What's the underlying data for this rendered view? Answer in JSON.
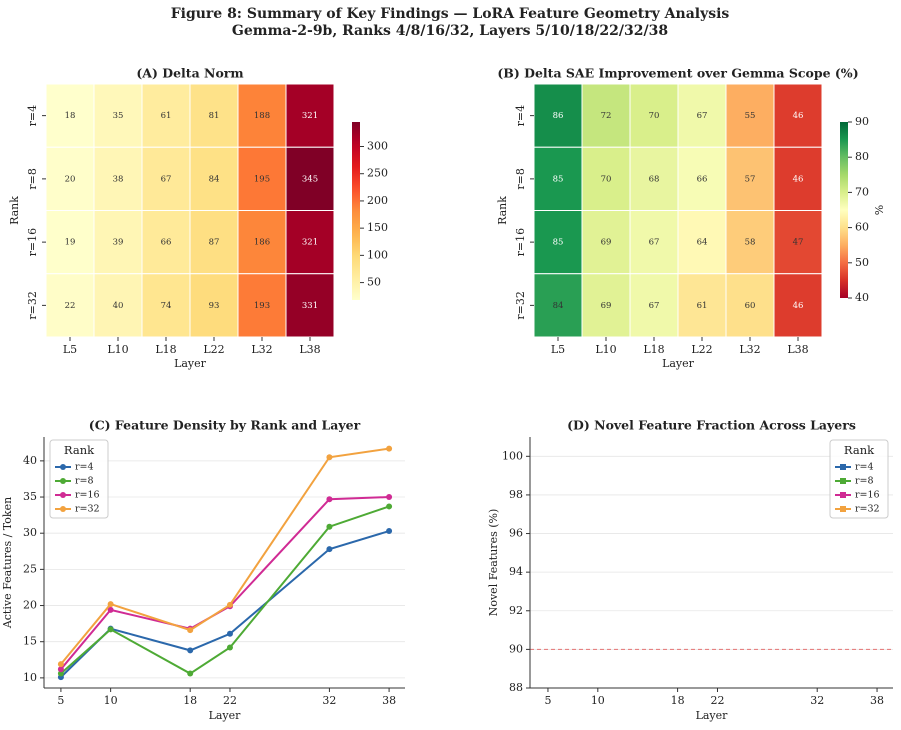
{
  "figure": {
    "title": "Figure 8: Summary of Key Findings — LoRA Feature Geometry Analysis",
    "subtitle": "Gemma-2-9b, Ranks 4/8/16/32, Layers 5/10/18/22/32/38"
  },
  "chart_data": [
    {
      "type": "heatmap",
      "title": "(A) Delta Norm",
      "xlabel": "Layer",
      "ylabel": "Rank",
      "x_categories": [
        "L5",
        "L10",
        "L18",
        "L22",
        "L32",
        "L38"
      ],
      "y_categories": [
        "r=4",
        "r=8",
        "r=16",
        "r=32"
      ],
      "values": [
        [
          18,
          35,
          61,
          81,
          188,
          321
        ],
        [
          20,
          38,
          67,
          84,
          195,
          345
        ],
        [
          19,
          39,
          66,
          87,
          186,
          321
        ],
        [
          22,
          40,
          74,
          93,
          193,
          331
        ]
      ],
      "colormap": "YlOrRd",
      "clim": [
        18,
        345
      ],
      "cticks": [
        50,
        100,
        150,
        200,
        250,
        300
      ]
    },
    {
      "type": "heatmap",
      "title": "(B) Delta SAE Improvement over Gemma Scope (%)",
      "xlabel": "Layer",
      "ylabel": "Rank",
      "x_categories": [
        "L5",
        "L10",
        "L18",
        "L22",
        "L32",
        "L38"
      ],
      "y_categories": [
        "r=4",
        "r=8",
        "r=16",
        "r=32"
      ],
      "values": [
        [
          86,
          72,
          70,
          67,
          55,
          46
        ],
        [
          85,
          70,
          68,
          66,
          57,
          46
        ],
        [
          85,
          69,
          67,
          64,
          58,
          47
        ],
        [
          84,
          69,
          67,
          61,
          60,
          46
        ]
      ],
      "colormap": "RdYlGn",
      "clim": [
        40,
        90
      ],
      "cticks": [
        40,
        50,
        60,
        70,
        80,
        90
      ],
      "colorbar_label": "%"
    },
    {
      "type": "line",
      "title": "(C) Feature Density by Rank and Layer",
      "xlabel": "Layer",
      "ylabel": "Active Features / Token",
      "x": [
        5,
        10,
        18,
        22,
        32,
        38
      ],
      "xlim": [
        3.3,
        39.6
      ],
      "xticks": [
        5,
        10,
        18,
        22,
        32,
        38
      ],
      "ylim": [
        8.6,
        43.3
      ],
      "yticks": [
        10,
        15,
        20,
        25,
        30,
        35,
        40
      ],
      "grid": true,
      "marker": "circle",
      "legend_title": "Rank",
      "legend": "upper left",
      "series": [
        {
          "name": "r=4",
          "color": "#2b68ab",
          "values": [
            10.1,
            16.8,
            13.8,
            16.1,
            27.8,
            30.3
          ]
        },
        {
          "name": "r=8",
          "color": "#4eaa35",
          "values": [
            10.6,
            16.7,
            10.6,
            14.2,
            30.9,
            33.7
          ]
        },
        {
          "name": "r=16",
          "color": "#d02b94",
          "values": [
            11.2,
            19.4,
            16.8,
            19.9,
            34.7,
            35.0
          ]
        },
        {
          "name": "r=32",
          "color": "#f2a23f",
          "values": [
            11.9,
            20.2,
            16.6,
            20.1,
            40.5,
            41.7
          ]
        }
      ]
    },
    {
      "type": "line",
      "title": "(D) Novel Feature Fraction Across Layers",
      "xlabel": "Layer",
      "ylabel": "Novel Features (%)",
      "x": [
        5,
        10,
        18,
        22,
        32,
        38
      ],
      "xlim": [
        3.2,
        39.6
      ],
      "xticks": [
        5,
        10,
        18,
        22,
        32,
        38
      ],
      "ylim": [
        88,
        101
      ],
      "yticks": [
        88,
        90,
        92,
        94,
        96,
        98,
        100
      ],
      "grid": true,
      "marker": "square",
      "legend_title": "Rank",
      "legend": "upper right",
      "hline": {
        "value": 90,
        "color": "#e57373"
      },
      "series": [
        {
          "name": "r=4",
          "color": "#2b68ab",
          "values": [
            null,
            null,
            null,
            null,
            null,
            null
          ]
        },
        {
          "name": "r=8",
          "color": "#4eaa35",
          "values": [
            null,
            null,
            null,
            null,
            null,
            null
          ]
        },
        {
          "name": "r=16",
          "color": "#d02b94",
          "values": [
            null,
            null,
            null,
            null,
            null,
            null
          ]
        },
        {
          "name": "r=32",
          "color": "#f2a23f",
          "values": [
            null,
            null,
            null,
            null,
            null,
            null
          ]
        }
      ]
    }
  ]
}
